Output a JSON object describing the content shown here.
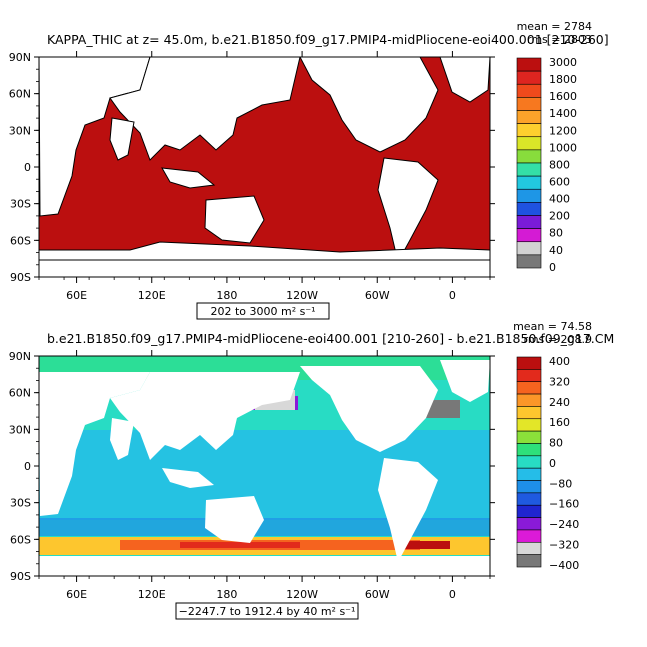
{
  "chart_data": [
    {
      "type": "heatmap",
      "title": "KAPPA_THIC at z=  45.0m, b.e21.B1850.f09_g17.PMIP4-midPliocene-eoi400.001 [210-260]",
      "stats": [
        "mean = 2784",
        "rms = 2803"
      ],
      "range_label": "202 to 3000 m² s⁻¹",
      "x_ticks": [
        "60E",
        "120E",
        "180",
        "120W",
        "60W",
        "0"
      ],
      "y_ticks": [
        "90N",
        "60N",
        "30N",
        "0",
        "30S",
        "60S",
        "90S"
      ],
      "xlim": [
        30,
        390
      ],
      "ylim": [
        -90,
        90
      ],
      "colorbar": {
        "labels": [
          "3000",
          "1800",
          "1600",
          "1400",
          "1200",
          "1000",
          "800",
          "600",
          "400",
          "200",
          "80",
          "40",
          "0"
        ],
        "colors": [
          "#bb0f0f",
          "#de2520",
          "#f04a1c",
          "#f7781f",
          "#fca32a",
          "#fdcf2e",
          "#d9e628",
          "#88dd3c",
          "#34dfa7",
          "#22c8e0",
          "#1e96e6",
          "#1f52e0",
          "#7a1bd7",
          "#d41bd4",
          "#d2d2d2",
          "#787878"
        ]
      },
      "field": {
        "background": "#bb0f0f",
        "land": "#ffffff",
        "dominant_value": 3000
      }
    },
    {
      "type": "heatmap",
      "title": "b.e21.B1850.f09_g17.PMIP4-midPliocene-eoi400.001 [210-260] - b.e21.B1850.f09_g17.CM",
      "stats": [
        "mean = 74.58",
        "rms = 208.9"
      ],
      "range_label": "−2247.7 to 1912.4 by 40 m² s⁻¹",
      "x_ticks": [
        "60E",
        "120E",
        "180",
        "120W",
        "60W",
        "0"
      ],
      "y_ticks": [
        "90N",
        "60N",
        "30N",
        "0",
        "30S",
        "60S",
        "90S"
      ],
      "xlim": [
        30,
        390
      ],
      "ylim": [
        -90,
        90
      ],
      "colorbar": {
        "labels": [
          "400",
          "320",
          "240",
          "160",
          "80",
          "0",
          "−80",
          "−160",
          "−240",
          "−320",
          "−400"
        ],
        "colors": [
          "#bb0f0f",
          "#e22a1c",
          "#f5631f",
          "#fb9628",
          "#fdc62e",
          "#e3e628",
          "#8be03a",
          "#2ee07a",
          "#28dcc4",
          "#25bde8",
          "#1e8fe8",
          "#1f5ae0",
          "#1f25d0",
          "#8a1ad8",
          "#dc1ad8",
          "#d8d8d8",
          "#787878"
        ]
      },
      "field": {
        "background": "#28dcc4",
        "land": "#ffffff",
        "dominant_value": 0
      }
    }
  ]
}
